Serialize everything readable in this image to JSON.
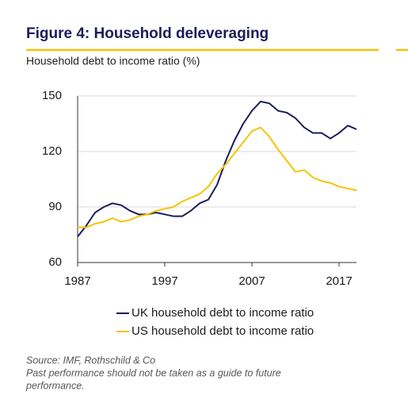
{
  "chart_data": {
    "type": "line",
    "title": "Figure 4: Household deleveraging",
    "subtitle": "Household debt to income ratio (%)",
    "x": [
      1987,
      1988,
      1989,
      1990,
      1991,
      1992,
      1993,
      1994,
      1995,
      1996,
      1997,
      1998,
      1999,
      2000,
      2001,
      2002,
      2003,
      2004,
      2005,
      2006,
      2007,
      2008,
      2009,
      2010,
      2011,
      2012,
      2013,
      2014,
      2015,
      2016,
      2017,
      2018,
      2019
    ],
    "series": [
      {
        "name": "UK household debt to income ratio",
        "color": "#1c1c5a",
        "values": [
          74,
          80,
          87,
          90,
          92,
          91,
          88,
          86,
          86,
          87,
          86,
          85,
          85,
          88,
          92,
          94,
          102,
          115,
          126,
          135,
          142,
          147,
          146,
          142,
          141,
          138,
          133,
          130,
          130,
          127,
          130,
          134,
          132
        ]
      },
      {
        "name": "US household debt to income ratio",
        "color": "#f5c400",
        "values": [
          79,
          79,
          81,
          82,
          84,
          82,
          83,
          85,
          86,
          88,
          89,
          90,
          93,
          95,
          97,
          101,
          108,
          113,
          119,
          125,
          131,
          133,
          128,
          121,
          115,
          109,
          110,
          106,
          104,
          103,
          101,
          100,
          99
        ]
      }
    ],
    "xlim": [
      1987,
      2019
    ],
    "xticks": [
      1987,
      1997,
      2007,
      2017
    ],
    "ylim": [
      60,
      150
    ],
    "yticks": [
      60,
      90,
      120,
      150
    ],
    "grid": true,
    "source": [
      "Source: IMF, Rothschild & Co",
      "Past performance should not be taken as a guide to future",
      "performance."
    ]
  }
}
